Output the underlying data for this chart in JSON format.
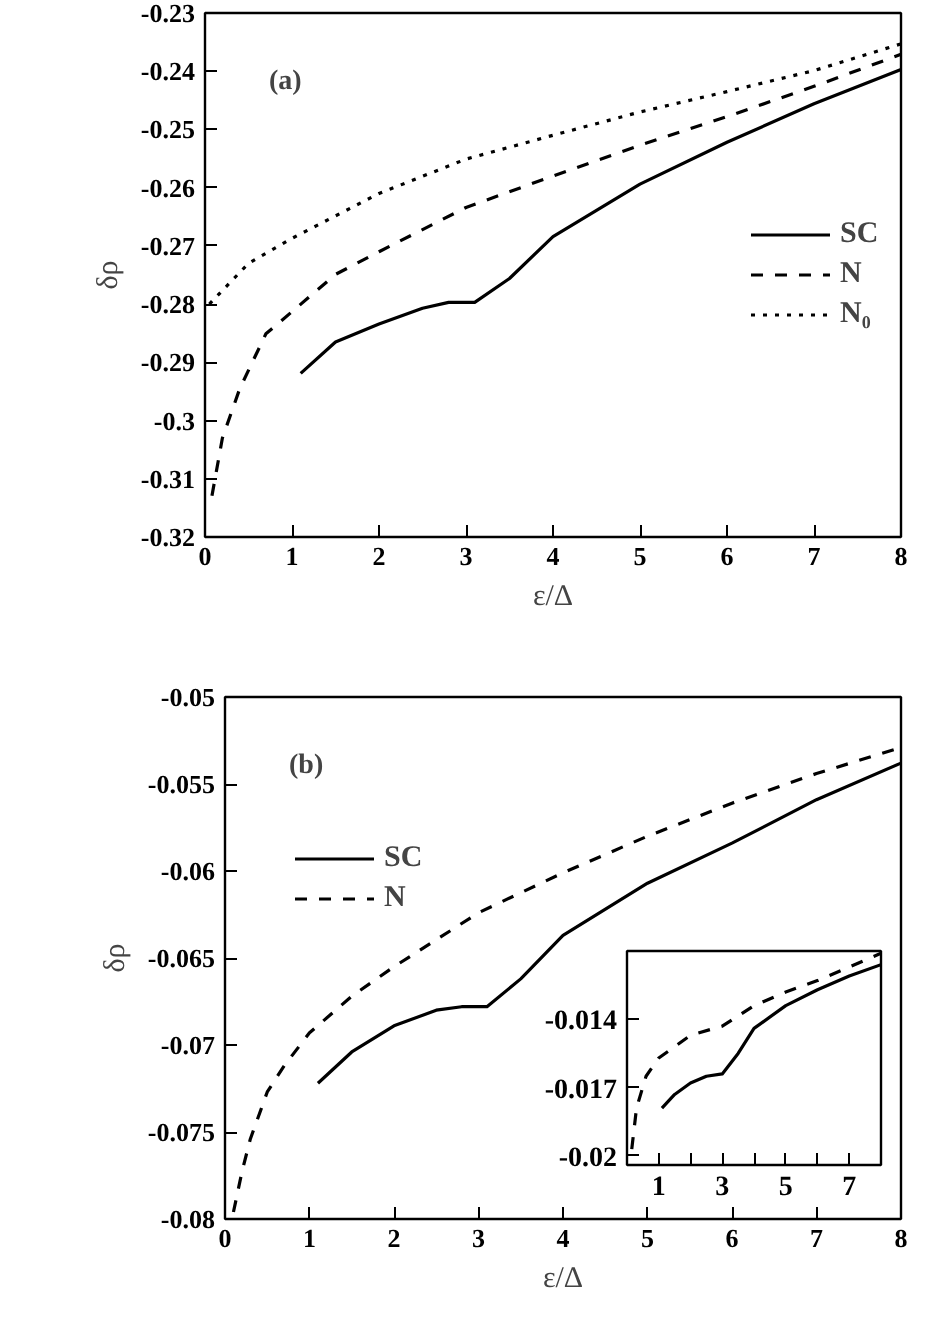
{
  "chart_data": [
    {
      "type": "line",
      "xlabel": "ε/Δ",
      "ylabel": "δρ",
      "annotations": [
        "(a)"
      ],
      "legend": "right",
      "grid": false,
      "xlim": [
        0,
        8
      ],
      "xticks": [
        0,
        1,
        2,
        3,
        4,
        5,
        6,
        7,
        8
      ],
      "ylim": [
        -0.32,
        -0.23
      ],
      "yticks": [
        -0.32,
        -0.31,
        -0.3,
        -0.29,
        -0.28,
        -0.27,
        -0.26,
        -0.25,
        -0.24,
        -0.23
      ],
      "series": [
        {
          "name": "SC",
          "color": "#000000",
          "line_style": "solid",
          "x": [
            1.1,
            1.5,
            2,
            2.5,
            2.8,
            3.1,
            3.5,
            4,
            5,
            6,
            7,
            8
          ],
          "values": [
            -0.2919,
            -0.2865,
            -0.2834,
            -0.2807,
            -0.2797,
            -0.2797,
            -0.2756,
            -0.2684,
            -0.2594,
            -0.2522,
            -0.2456,
            -0.2397
          ]
        },
        {
          "name": "N",
          "color": "#000000",
          "line_style": "dashed",
          "x": [
            0.08,
            0.2,
            0.4,
            0.7,
            1,
            1.5,
            2,
            3,
            4,
            5,
            6,
            7,
            8
          ],
          "values": [
            -0.3129,
            -0.303,
            -0.2945,
            -0.2851,
            -0.2813,
            -0.2749,
            -0.271,
            -0.2634,
            -0.258,
            -0.2527,
            -0.2478,
            -0.2426,
            -0.2371
          ]
        },
        {
          "name": "N₀",
          "color": "#000000",
          "line_style": "dotted",
          "x": [
            0.05,
            0.5,
            1,
            2,
            3,
            4,
            5,
            6,
            7,
            8
          ],
          "values": [
            -0.28,
            -0.273,
            -0.2687,
            -0.261,
            -0.2551,
            -0.251,
            -0.247,
            -0.2435,
            -0.2399,
            -0.2353
          ]
        }
      ]
    },
    {
      "type": "line",
      "xlabel": "ε/Δ",
      "ylabel": "δρ",
      "annotations": [
        "(b)"
      ],
      "legend": "top left",
      "grid": false,
      "xlim": [
        0,
        8
      ],
      "xticks": [
        0,
        1,
        2,
        3,
        4,
        5,
        6,
        7,
        8
      ],
      "ylim": [
        -0.08,
        -0.05
      ],
      "yticks": [
        -0.08,
        -0.075,
        -0.07,
        -0.065,
        -0.06,
        -0.055,
        -0.05
      ],
      "series": [
        {
          "name": "SC",
          "color": "#000000",
          "line_style": "solid",
          "x": [
            1.1,
            1.5,
            2,
            2.5,
            2.8,
            3.1,
            3.5,
            4,
            5,
            6,
            7,
            8
          ],
          "values": [
            -0.0722,
            -0.0704,
            -0.0689,
            -0.068,
            -0.0678,
            -0.0678,
            -0.0662,
            -0.0637,
            -0.0607,
            -0.0584,
            -0.0559,
            -0.0538
          ]
        },
        {
          "name": "N",
          "color": "#000000",
          "line_style": "dashed",
          "x": [
            0.1,
            0.2,
            0.3,
            0.5,
            0.7,
            1,
            1.5,
            2,
            3,
            4,
            5,
            6,
            7,
            8
          ],
          "values": [
            -0.0796,
            -0.0773,
            -0.0754,
            -0.0727,
            -0.0712,
            -0.0693,
            -0.0672,
            -0.0655,
            -0.0624,
            -0.0601,
            -0.058,
            -0.0561,
            -0.0544,
            -0.0529
          ]
        }
      ]
    },
    {
      "type": "line",
      "legend": false,
      "grid": false,
      "xlim": [
        0,
        8
      ],
      "xticks": [
        1,
        {
          "value": 2,
          "label": null
        },
        3,
        {
          "value": 4,
          "label": null
        },
        5,
        {
          "value": 6,
          "label": null
        },
        7
      ],
      "ylim": [
        -0.0204,
        -0.011
      ],
      "yticks": [
        -0.02,
        -0.017,
        -0.014
      ],
      "series": [
        {
          "color": "#000000",
          "line_style": "solid",
          "x": [
            1.1,
            1.5,
            2,
            2.5,
            3,
            3.5,
            4,
            5,
            6,
            7,
            8
          ],
          "values": [
            -0.0179,
            -0.0173,
            -0.0168,
            -0.0165,
            -0.0164,
            -0.0155,
            -0.0144,
            -0.0134,
            -0.0127,
            -0.0121,
            -0.0116
          ]
        },
        {
          "color": "#000000",
          "line_style": "dashed",
          "x": [
            0.15,
            0.3,
            0.6,
            1,
            2,
            3,
            4,
            5,
            6,
            7,
            8
          ],
          "values": [
            -0.0197,
            -0.0179,
            -0.0165,
            -0.0157,
            -0.0147,
            -0.0143,
            -0.0134,
            -0.0128,
            -0.0123,
            -0.0117,
            -0.0111
          ]
        }
      ]
    }
  ]
}
